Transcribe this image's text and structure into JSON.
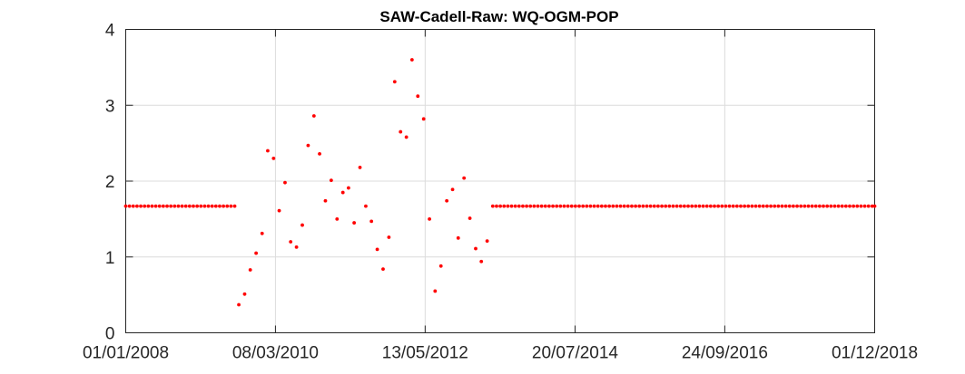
{
  "chart_data": {
    "type": "scatter",
    "title": "SAW-Cadell-Raw: WQ-OGM-POP",
    "xlabel": "",
    "ylabel": "",
    "x_axis_type": "date",
    "x_tick_labels": [
      "01/01/2008",
      "08/03/2010",
      "13/05/2012",
      "20/07/2014",
      "24/09/2016",
      "01/12/2018"
    ],
    "y_tick_labels": [
      "0",
      "1",
      "2",
      "3",
      "4"
    ],
    "xlim": [
      "01/01/2008",
      "01/12/2018"
    ],
    "ylim": [
      0,
      4
    ],
    "grid": true,
    "marker_color": "#ff0000",
    "series": [
      {
        "points": [
          [
            "2008-01-01",
            1.67
          ],
          [
            "2008-01-21",
            1.67
          ],
          [
            "2008-02-10",
            1.67
          ],
          [
            "2008-03-01",
            1.67
          ],
          [
            "2008-03-21",
            1.67
          ],
          [
            "2008-04-10",
            1.67
          ],
          [
            "2008-04-30",
            1.67
          ],
          [
            "2008-05-20",
            1.67
          ],
          [
            "2008-06-09",
            1.67
          ],
          [
            "2008-06-29",
            1.67
          ],
          [
            "2008-07-19",
            1.67
          ],
          [
            "2008-08-08",
            1.67
          ],
          [
            "2008-08-28",
            1.67
          ],
          [
            "2008-09-17",
            1.67
          ],
          [
            "2008-10-07",
            1.67
          ],
          [
            "2008-10-27",
            1.67
          ],
          [
            "2008-11-16",
            1.67
          ],
          [
            "2008-12-06",
            1.67
          ],
          [
            "2008-12-26",
            1.67
          ],
          [
            "2009-01-15",
            1.67
          ],
          [
            "2009-02-04",
            1.67
          ],
          [
            "2009-02-24",
            1.67
          ],
          [
            "2009-03-16",
            1.67
          ],
          [
            "2009-04-05",
            1.67
          ],
          [
            "2009-04-25",
            1.67
          ],
          [
            "2009-05-15",
            1.67
          ],
          [
            "2009-06-04",
            1.67
          ],
          [
            "2009-06-24",
            1.67
          ],
          [
            "2009-07-14",
            1.67
          ],
          [
            "2009-08-03",
            1.67
          ],
          [
            "2009-08-25",
            0.37
          ],
          [
            "2009-09-25",
            0.51
          ],
          [
            "2009-10-25",
            0.83
          ],
          [
            "2009-11-25",
            1.05
          ],
          [
            "2009-12-27",
            1.31
          ],
          [
            "2010-01-26",
            2.4
          ],
          [
            "2010-02-26",
            2.3
          ],
          [
            "2010-03-28",
            1.61
          ],
          [
            "2010-04-28",
            1.98
          ],
          [
            "2010-05-28",
            1.2
          ],
          [
            "2010-06-28",
            1.13
          ],
          [
            "2010-07-29",
            1.42
          ],
          [
            "2010-08-29",
            2.47
          ],
          [
            "2010-09-29",
            2.86
          ],
          [
            "2010-10-29",
            2.36
          ],
          [
            "2010-11-29",
            1.74
          ],
          [
            "2010-12-30",
            2.01
          ],
          [
            "2011-01-30",
            1.5
          ],
          [
            "2011-03-02",
            1.85
          ],
          [
            "2011-04-01",
            1.91
          ],
          [
            "2011-05-01",
            1.45
          ],
          [
            "2011-06-01",
            2.18
          ],
          [
            "2011-07-02",
            1.67
          ],
          [
            "2011-08-01",
            1.47
          ],
          [
            "2011-09-01",
            1.1
          ],
          [
            "2011-10-02",
            0.84
          ],
          [
            "2011-11-02",
            1.26
          ],
          [
            "2011-12-03",
            3.31
          ],
          [
            "2012-01-03",
            2.65
          ],
          [
            "2012-02-03",
            2.58
          ],
          [
            "2012-03-04",
            3.6
          ],
          [
            "2012-04-04",
            3.12
          ],
          [
            "2012-05-05",
            2.82
          ],
          [
            "2012-06-05",
            1.5
          ],
          [
            "2012-07-05",
            0.55
          ],
          [
            "2012-08-05",
            0.88
          ],
          [
            "2012-09-05",
            1.74
          ],
          [
            "2012-10-06",
            1.89
          ],
          [
            "2012-11-05",
            1.25
          ],
          [
            "2012-12-06",
            2.04
          ],
          [
            "2013-01-06",
            1.51
          ],
          [
            "2013-02-06",
            1.11
          ],
          [
            "2013-03-08",
            0.94
          ],
          [
            "2013-04-08",
            1.21
          ],
          [
            "2013-05-08",
            1.67
          ],
          [
            "2013-05-28",
            1.67
          ],
          [
            "2013-06-17",
            1.67
          ],
          [
            "2013-07-07",
            1.67
          ],
          [
            "2013-07-27",
            1.67
          ],
          [
            "2013-08-16",
            1.67
          ],
          [
            "2013-09-05",
            1.67
          ],
          [
            "2013-09-25",
            1.67
          ],
          [
            "2013-10-15",
            1.67
          ],
          [
            "2013-11-04",
            1.67
          ],
          [
            "2013-11-24",
            1.67
          ],
          [
            "2013-12-14",
            1.67
          ],
          [
            "2014-01-03",
            1.67
          ],
          [
            "2014-01-23",
            1.67
          ],
          [
            "2014-02-12",
            1.67
          ],
          [
            "2014-03-04",
            1.67
          ],
          [
            "2014-03-24",
            1.67
          ],
          [
            "2014-04-13",
            1.67
          ],
          [
            "2014-05-03",
            1.67
          ],
          [
            "2014-05-23",
            1.67
          ],
          [
            "2014-06-12",
            1.67
          ],
          [
            "2014-07-02",
            1.67
          ],
          [
            "2014-07-22",
            1.67
          ],
          [
            "2014-08-11",
            1.67
          ],
          [
            "2014-08-31",
            1.67
          ],
          [
            "2014-09-20",
            1.67
          ],
          [
            "2014-10-10",
            1.67
          ],
          [
            "2014-10-30",
            1.67
          ],
          [
            "2014-11-19",
            1.67
          ],
          [
            "2014-12-09",
            1.67
          ],
          [
            "2014-12-29",
            1.67
          ],
          [
            "2015-01-18",
            1.67
          ],
          [
            "2015-02-07",
            1.67
          ],
          [
            "2015-02-27",
            1.67
          ],
          [
            "2015-03-19",
            1.67
          ],
          [
            "2015-04-08",
            1.67
          ],
          [
            "2015-04-28",
            1.67
          ],
          [
            "2015-05-18",
            1.67
          ],
          [
            "2015-06-07",
            1.67
          ],
          [
            "2015-06-27",
            1.67
          ],
          [
            "2015-07-17",
            1.67
          ],
          [
            "2015-08-06",
            1.67
          ],
          [
            "2015-08-26",
            1.67
          ],
          [
            "2015-09-15",
            1.67
          ],
          [
            "2015-10-05",
            1.67
          ],
          [
            "2015-10-25",
            1.67
          ],
          [
            "2015-11-14",
            1.67
          ],
          [
            "2015-12-04",
            1.67
          ],
          [
            "2015-12-24",
            1.67
          ],
          [
            "2016-01-13",
            1.67
          ],
          [
            "2016-02-02",
            1.67
          ],
          [
            "2016-02-22",
            1.67
          ],
          [
            "2016-03-13",
            1.67
          ],
          [
            "2016-04-02",
            1.67
          ],
          [
            "2016-04-22",
            1.67
          ],
          [
            "2016-05-12",
            1.67
          ],
          [
            "2016-06-01",
            1.67
          ],
          [
            "2016-06-21",
            1.67
          ],
          [
            "2016-07-11",
            1.67
          ],
          [
            "2016-07-31",
            1.67
          ],
          [
            "2016-08-20",
            1.67
          ],
          [
            "2016-09-09",
            1.67
          ],
          [
            "2016-09-29",
            1.67
          ],
          [
            "2016-10-19",
            1.67
          ],
          [
            "2016-11-08",
            1.67
          ],
          [
            "2016-11-28",
            1.67
          ],
          [
            "2016-12-18",
            1.67
          ],
          [
            "2017-01-07",
            1.67
          ],
          [
            "2017-01-27",
            1.67
          ],
          [
            "2017-02-16",
            1.67
          ],
          [
            "2017-03-08",
            1.67
          ],
          [
            "2017-03-28",
            1.67
          ],
          [
            "2017-04-17",
            1.67
          ],
          [
            "2017-05-07",
            1.67
          ],
          [
            "2017-05-27",
            1.67
          ],
          [
            "2017-06-16",
            1.67
          ],
          [
            "2017-07-06",
            1.67
          ],
          [
            "2017-07-26",
            1.67
          ],
          [
            "2017-08-15",
            1.67
          ],
          [
            "2017-09-04",
            1.67
          ],
          [
            "2017-09-24",
            1.67
          ],
          [
            "2017-10-14",
            1.67
          ],
          [
            "2017-11-03",
            1.67
          ],
          [
            "2017-11-23",
            1.67
          ],
          [
            "2017-12-13",
            1.67
          ],
          [
            "2018-01-02",
            1.67
          ],
          [
            "2018-01-22",
            1.67
          ],
          [
            "2018-02-11",
            1.67
          ],
          [
            "2018-03-03",
            1.67
          ],
          [
            "2018-03-23",
            1.67
          ],
          [
            "2018-04-12",
            1.67
          ],
          [
            "2018-05-02",
            1.67
          ],
          [
            "2018-05-22",
            1.67
          ],
          [
            "2018-06-11",
            1.67
          ],
          [
            "2018-07-01",
            1.67
          ],
          [
            "2018-07-21",
            1.67
          ],
          [
            "2018-08-10",
            1.67
          ],
          [
            "2018-08-30",
            1.67
          ],
          [
            "2018-09-19",
            1.67
          ],
          [
            "2018-10-09",
            1.67
          ],
          [
            "2018-10-29",
            1.67
          ],
          [
            "2018-11-18",
            1.67
          ],
          [
            "2018-12-01",
            1.67
          ]
        ]
      }
    ]
  }
}
